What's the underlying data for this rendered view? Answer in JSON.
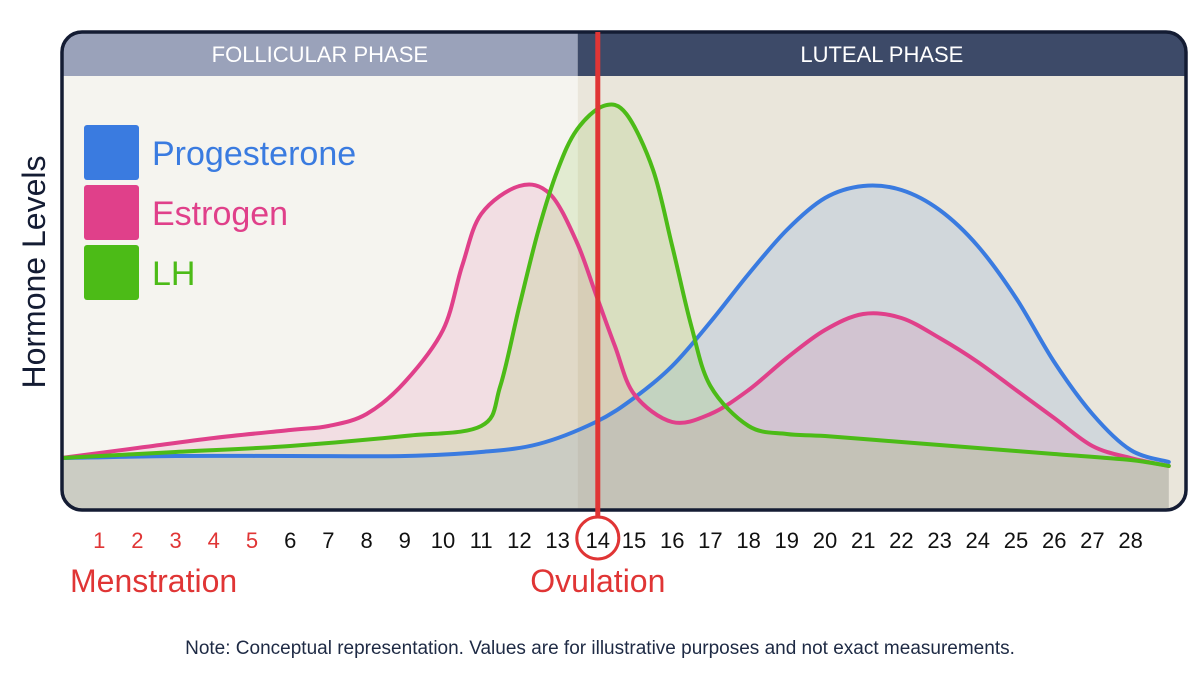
{
  "chart_data": {
    "type": "line",
    "title": "",
    "ylabel": "Hormone Levels",
    "xlabel": "",
    "x_ticks": [
      "1",
      "2",
      "3",
      "4",
      "5",
      "6",
      "7",
      "8",
      "9",
      "10",
      "11",
      "12",
      "13",
      "14",
      "15",
      "16",
      "17",
      "18",
      "19",
      "20",
      "21",
      "22",
      "23",
      "24",
      "25",
      "26",
      "27",
      "28"
    ],
    "xlim": [
      0,
      29
    ],
    "ylim": [
      0,
      100
    ],
    "grid": false,
    "legend_position": "top-left",
    "phases": [
      {
        "label": "FOLLICULAR PHASE",
        "start_day": 0,
        "end_day": 13.5
      },
      {
        "label": "LUTEAL PHASE",
        "start_day": 13.5,
        "end_day": 29
      }
    ],
    "ovulation_day": 14,
    "menstruation_days": [
      1,
      2,
      3,
      4,
      5
    ],
    "annotations": [
      {
        "text": "Menstration",
        "day": 1
      },
      {
        "text": "Ovulation",
        "day": 14
      }
    ],
    "series": [
      {
        "name": "Progesterone",
        "color": "#3a7be0",
        "fill": "rgba(90,140,220,0.17)",
        "points": [
          [
            0,
            10
          ],
          [
            3,
            10.5
          ],
          [
            6,
            10.5
          ],
          [
            9,
            10.5
          ],
          [
            11,
            11.5
          ],
          [
            12.5,
            13.5
          ],
          [
            14,
            19
          ],
          [
            15,
            25
          ],
          [
            16,
            33
          ],
          [
            17,
            44
          ],
          [
            18,
            56
          ],
          [
            19,
            67
          ],
          [
            20,
            75
          ],
          [
            21,
            78
          ],
          [
            22,
            77
          ],
          [
            23,
            72
          ],
          [
            24,
            63
          ],
          [
            25,
            50
          ],
          [
            26,
            34
          ],
          [
            27,
            21
          ],
          [
            28,
            12
          ],
          [
            29,
            9
          ]
        ]
      },
      {
        "name": "Estrogen",
        "color": "#e0408a",
        "fill": "rgba(224,64,138,0.12)",
        "points": [
          [
            0,
            10
          ],
          [
            2,
            12.5
          ],
          [
            4,
            15
          ],
          [
            6,
            17
          ],
          [
            7,
            18
          ],
          [
            8,
            21
          ],
          [
            9,
            29
          ],
          [
            10,
            42
          ],
          [
            10.5,
            58
          ],
          [
            11,
            71
          ],
          [
            12,
            78
          ],
          [
            12.8,
            76
          ],
          [
            13.5,
            64
          ],
          [
            14,
            51
          ],
          [
            14.5,
            38
          ],
          [
            15,
            26
          ],
          [
            16,
            19
          ],
          [
            17,
            21
          ],
          [
            18,
            27
          ],
          [
            19,
            35
          ],
          [
            20,
            42
          ],
          [
            21,
            46
          ],
          [
            22,
            45
          ],
          [
            23,
            40
          ],
          [
            24,
            34
          ],
          [
            25,
            27
          ],
          [
            26,
            20
          ],
          [
            27,
            13
          ],
          [
            28,
            10
          ],
          [
            29,
            8
          ]
        ]
      },
      {
        "name": "LH",
        "color": "#4cbb17",
        "fill": "rgba(120,190,40,0.15)",
        "points": [
          [
            0,
            10
          ],
          [
            3,
            11.5
          ],
          [
            6,
            13
          ],
          [
            9,
            15.5
          ],
          [
            11,
            18
          ],
          [
            11.5,
            28
          ],
          [
            12,
            48
          ],
          [
            12.5,
            67
          ],
          [
            13,
            82
          ],
          [
            13.5,
            92
          ],
          [
            14.2,
            98
          ],
          [
            14.8,
            96
          ],
          [
            15.5,
            82
          ],
          [
            16,
            63
          ],
          [
            16.5,
            43
          ],
          [
            17,
            28
          ],
          [
            18,
            18
          ],
          [
            19,
            16
          ],
          [
            20,
            15.5
          ],
          [
            22,
            14
          ],
          [
            24,
            12.5
          ],
          [
            26,
            11
          ],
          [
            28,
            9.5
          ],
          [
            29,
            8
          ]
        ]
      }
    ]
  },
  "footer": {
    "note": "Note: Conceptual representation. Values are for illustrative purposes and not exact measurements."
  },
  "colors": {
    "follicular_header": "#9aa2ba",
    "luteal_header": "#3d4a68",
    "follicular_bg": "#f5f4ef",
    "luteal_bg": "#eae6db",
    "frame": "#141c33",
    "ovulation": "#e03535"
  }
}
